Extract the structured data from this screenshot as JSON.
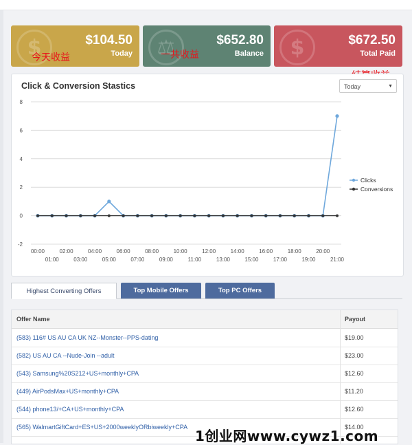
{
  "stats": [
    {
      "amount": "$104.50",
      "caption": "Today",
      "note": "今天收益",
      "color": "#c9a64a",
      "icon": "dollar-icon"
    },
    {
      "amount": "$652.80",
      "caption": "Balance",
      "note": "一共收益",
      "color": "#5e8373",
      "icon": "scale-icon"
    },
    {
      "amount": "$672.50",
      "caption": "Total Paid",
      "note": "结算收益",
      "color": "#c8565e",
      "icon": "dollar-icon"
    }
  ],
  "chart": {
    "title": "Click & Conversion Stastics",
    "range_selected": "Today"
  },
  "chart_data": {
    "type": "line",
    "x": [
      "00:00",
      "01:00",
      "02:00",
      "03:00",
      "04:00",
      "05:00",
      "06:00",
      "07:00",
      "08:00",
      "09:00",
      "10:00",
      "11:00",
      "12:00",
      "13:00",
      "14:00",
      "15:00",
      "16:00",
      "17:00",
      "18:00",
      "19:00",
      "20:00",
      "21:00"
    ],
    "yticks": [
      -2,
      0,
      2,
      4,
      6,
      8
    ],
    "ylim": [
      -2,
      8
    ],
    "series": [
      {
        "name": "Clicks",
        "color": "#6fa8dc",
        "values": [
          0,
          0,
          0,
          0,
          0,
          1,
          0,
          0,
          0,
          0,
          0,
          0,
          0,
          0,
          0,
          0,
          0,
          0,
          0,
          0,
          0,
          7
        ]
      },
      {
        "name": "Conversions",
        "color": "#333333",
        "values": [
          0,
          0,
          0,
          0,
          0,
          0,
          0,
          0,
          0,
          0,
          0,
          0,
          0,
          0,
          0,
          0,
          0,
          0,
          0,
          0,
          0,
          0
        ]
      }
    ],
    "legend_position": "right",
    "grid": true
  },
  "tabs": [
    {
      "label": "Highest Converting Offers",
      "active": true
    },
    {
      "label": "Top Mobile Offers",
      "active": false
    },
    {
      "label": "Top PC Offers",
      "active": false
    }
  ],
  "offers": {
    "headers": [
      "Offer Name",
      "Payout"
    ],
    "rows": [
      {
        "name": "(583) 116# US AU CA UK NZ--Monster--PPS-dating",
        "payout": "$19.00"
      },
      {
        "name": "(582) US AU CA --Nude-Join --adult",
        "payout": "$23.00"
      },
      {
        "name": "(543) Samsung%20S212+US+monthly+CPA",
        "payout": "$12.60"
      },
      {
        "name": "(449) AirPodsMax+US+monthly+CPA",
        "payout": "$11.20"
      },
      {
        "name": "(544) phone13/+CA+US+monthly+CPA",
        "payout": "$12.60"
      },
      {
        "name": "(565) WalmartGiftCard+ES+US+2000weeklyORbiweekly+CPA",
        "payout": "$14.00"
      }
    ]
  },
  "watermark": "1创业网www.cywz1.com"
}
